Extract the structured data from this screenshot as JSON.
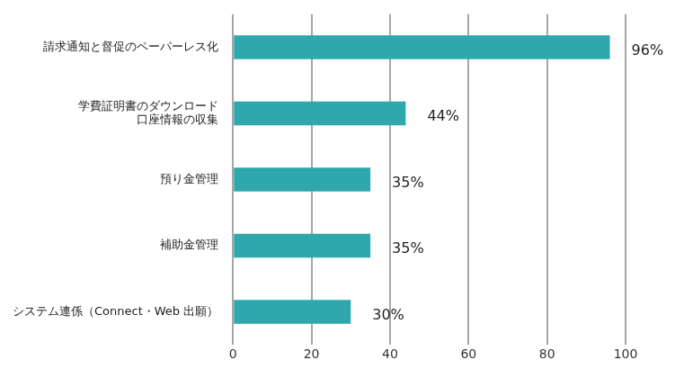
{
  "chart_data": {
    "type": "bar",
    "orientation": "horizontal",
    "categories": [
      "請求通知と督促のペーパーレス化",
      [
        "学費証明書のダウンロード",
        "口座情報の収集"
      ],
      "預り金管理",
      "補助金管理",
      "システム連係（Connect・Web 出願）"
    ],
    "values": [
      96,
      44,
      35,
      35,
      30
    ],
    "value_labels": [
      "96%",
      "44%",
      "35%",
      "35%",
      "30%"
    ],
    "color": "#2fa8ad",
    "xlim": [
      0,
      100
    ],
    "xticks": [
      0,
      20,
      40,
      60,
      80,
      100
    ],
    "grid": true,
    "data_labels": true
  }
}
